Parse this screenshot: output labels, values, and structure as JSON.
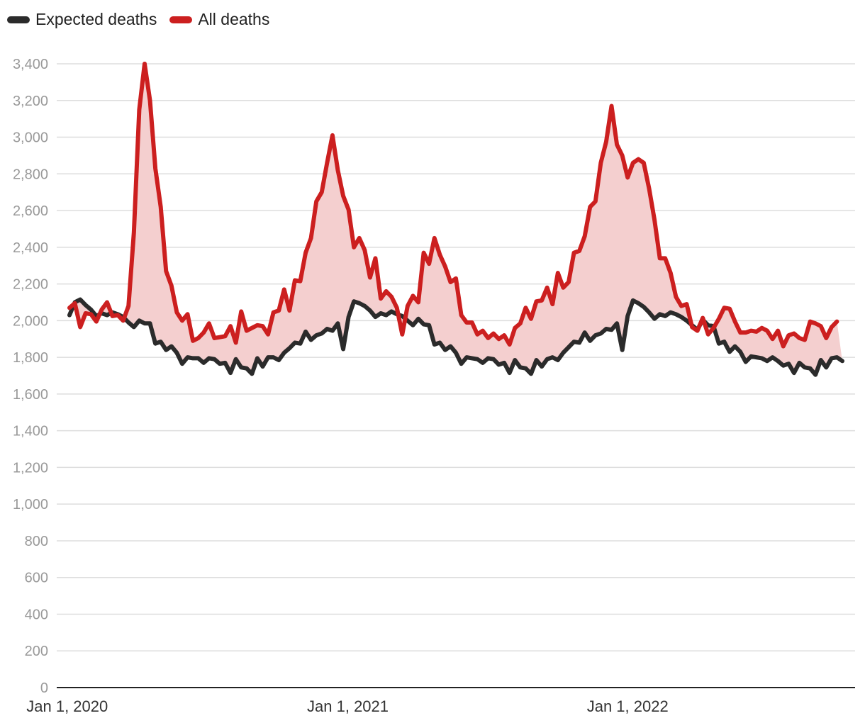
{
  "chart_data": {
    "type": "line",
    "title": "",
    "xlabel": "",
    "ylabel": "",
    "ylim": [
      0,
      3400
    ],
    "yticks": [
      0,
      200,
      400,
      600,
      800,
      1000,
      1200,
      1400,
      1600,
      1800,
      2000,
      2200,
      2400,
      2600,
      2800,
      3000,
      3200,
      3400
    ],
    "ytick_labels": [
      "0",
      "200",
      "400",
      "600",
      "800",
      "1,000",
      "1,200",
      "1,400",
      "1,600",
      "1,800",
      "2,000",
      "2,200",
      "2,400",
      "2,600",
      "2,800",
      "3,000",
      "3,200",
      "3,400"
    ],
    "x_start": "2020-01-04",
    "x_interval_days": 7,
    "xticks": [
      {
        "date": "2020-01-01",
        "label": "Jan 1, 2020"
      },
      {
        "date": "2021-01-01",
        "label": "Jan 1, 2021"
      },
      {
        "date": "2022-01-01",
        "label": "Jan 1, 2022"
      }
    ],
    "legend": "top-left",
    "grid": true,
    "fill_between": {
      "lower": "Expected deaths",
      "upper": "All deaths",
      "color": "#f4cfcf"
    },
    "series": [
      {
        "name": "Expected deaths",
        "color": "#2b2b2b",
        "values": [
          2030,
          2100,
          2115,
          2085,
          2060,
          2025,
          2040,
          2030,
          2045,
          2035,
          2020,
          1990,
          1965,
          2000,
          1985,
          1985,
          1875,
          1885,
          1840,
          1860,
          1825,
          1765,
          1800,
          1795,
          1795,
          1770,
          1795,
          1790,
          1765,
          1770,
          1715,
          1790,
          1745,
          1740,
          1710,
          1795,
          1750,
          1800,
          1800,
          1785,
          1825,
          1850,
          1880,
          1875,
          1940,
          1895,
          1920,
          1930,
          1955,
          1945,
          1985,
          1845,
          2020,
          2105,
          2095,
          2080,
          2055,
          2020,
          2040,
          2030,
          2050,
          2035,
          2025,
          2000,
          1975,
          2010,
          1980,
          1975,
          1870,
          1880,
          1840,
          1860,
          1825,
          1765,
          1800,
          1795,
          1790,
          1770,
          1795,
          1790,
          1760,
          1770,
          1715,
          1785,
          1745,
          1740,
          1710,
          1785,
          1750,
          1790,
          1800,
          1785,
          1825,
          1855,
          1885,
          1880,
          1935,
          1890,
          1920,
          1930,
          1955,
          1950,
          1985,
          1840,
          2025,
          2110,
          2095,
          2075,
          2045,
          2010,
          2035,
          2025,
          2045,
          2035,
          2020,
          2000,
          1975,
          1950,
          2005,
          1975,
          1970,
          1875,
          1885,
          1830,
          1860,
          1830,
          1775,
          1805,
          1800,
          1795,
          1780,
          1800,
          1780,
          1755,
          1765,
          1715,
          1770,
          1745,
          1740,
          1705,
          1785,
          1745,
          1795,
          1800,
          1780
        ]
      },
      {
        "name": "All deaths",
        "color": "#cc1f1f",
        "values": [
          2070,
          2095,
          1965,
          2040,
          2035,
          1995,
          2060,
          2100,
          2025,
          2030,
          2000,
          2080,
          2480,
          3150,
          3400,
          3200,
          2830,
          2620,
          2270,
          2190,
          2045,
          2000,
          2035,
          1890,
          1905,
          1935,
          1985,
          1905,
          1910,
          1915,
          1970,
          1880,
          2050,
          1945,
          1960,
          1975,
          1970,
          1925,
          2045,
          2055,
          2170,
          2055,
          2220,
          2215,
          2370,
          2450,
          2650,
          2700,
          2860,
          3010,
          2820,
          2680,
          2605,
          2400,
          2450,
          2385,
          2235,
          2340,
          2120,
          2160,
          2130,
          2070,
          1925,
          2080,
          2135,
          2100,
          2370,
          2310,
          2450,
          2360,
          2295,
          2210,
          2230,
          2030,
          1990,
          1990,
          1925,
          1945,
          1905,
          1930,
          1900,
          1920,
          1870,
          1960,
          1985,
          2070,
          2010,
          2105,
          2110,
          2180,
          2090,
          2260,
          2180,
          2210,
          2370,
          2380,
          2460,
          2620,
          2650,
          2860,
          2975,
          3170,
          2960,
          2900,
          2780,
          2860,
          2880,
          2860,
          2720,
          2550,
          2340,
          2340,
          2260,
          2130,
          2080,
          2090,
          1965,
          1945,
          2015,
          1925,
          1960,
          2010,
          2070,
          2065,
          1995,
          1935,
          1935,
          1945,
          1940,
          1960,
          1945,
          1900,
          1945,
          1860,
          1920,
          1930,
          1905,
          1895,
          1995,
          1985,
          1970,
          1905,
          1965,
          1995
        ]
      }
    ]
  }
}
